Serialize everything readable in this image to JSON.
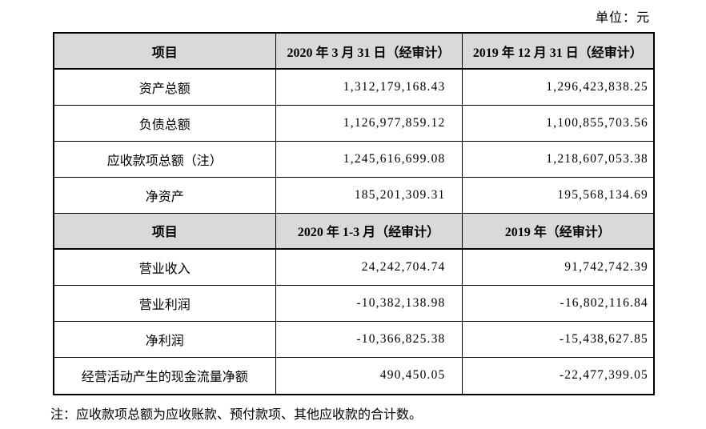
{
  "unit_label": "单位：元",
  "note": "注：应收款项总额为应收账款、预付款项、其他应收款的合计数。",
  "colors": {
    "header_bg": "#d9d9d9",
    "border": "#000000",
    "text": "#000000",
    "page_bg": "#ffffff"
  },
  "table": {
    "section1": {
      "headers": [
        "项目",
        "2020 年 3 月 31 日（经审计）",
        "2019 年 12 月 31 日（经审计）"
      ],
      "rows": [
        {
          "label": "资产总额",
          "v1": "1,312,179,168.43",
          "v2": "1,296,423,838.25"
        },
        {
          "label": "负债总额",
          "v1": "1,126,977,859.12",
          "v2": "1,100,855,703.56"
        },
        {
          "label": "应收款项总额（注）",
          "v1": "1,245,616,699.08",
          "v2": "1,218,607,053.38"
        },
        {
          "label": "净资产",
          "v1": "185,201,309.31",
          "v2": "195,568,134.69"
        }
      ]
    },
    "section2": {
      "headers": [
        "项目",
        "2020 年 1-3 月（经审计）",
        "2019 年（经审计）"
      ],
      "rows": [
        {
          "label": "营业收入",
          "v1": "24,242,704.74",
          "v2": "91,742,742.39"
        },
        {
          "label": "营业利润",
          "v1": "-10,382,138.98",
          "v2": "-16,802,116.84"
        },
        {
          "label": "净利润",
          "v1": "-10,366,825.38",
          "v2": "-15,438,627.85"
        },
        {
          "label": "经营活动产生的现金流量净额",
          "v1": "490,450.05",
          "v2": "-22,477,399.05"
        }
      ]
    }
  }
}
